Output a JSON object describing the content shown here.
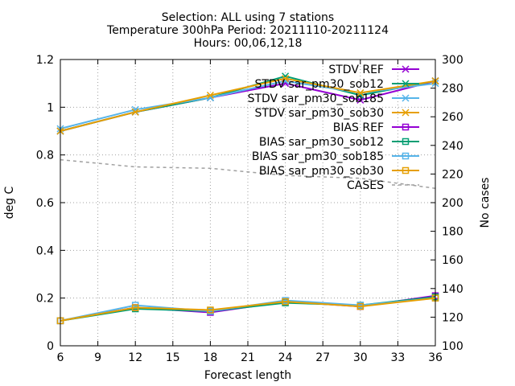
{
  "chart_data": {
    "type": "line",
    "title_lines": [
      "Selection: ALL using     7 stations",
      "Temperature 300hPa   Period: 20211110-20211124",
      "Hours: 00,06,12,18"
    ],
    "xlabel": "Forecast length",
    "ylabel": "deg C",
    "y2label": "No cases",
    "x": [
      6,
      12,
      18,
      24,
      30,
      36
    ],
    "xticks": [
      6,
      9,
      12,
      15,
      18,
      21,
      24,
      27,
      30,
      33,
      36
    ],
    "xlim": [
      6,
      36
    ],
    "yticks": [
      0,
      0.2,
      0.4,
      0.6,
      0.8,
      1,
      1.2
    ],
    "ylim": [
      0,
      1.2
    ],
    "y2ticks": [
      100,
      120,
      140,
      160,
      180,
      200,
      220,
      240,
      260,
      280,
      300
    ],
    "y2lim": [
      100,
      300
    ],
    "grid": true,
    "legend_position": "top-right",
    "series": [
      {
        "name": "STDV REF",
        "axis": "y",
        "values": [
          0.9,
          0.98,
          1.04,
          1.1,
          1.03,
          1.11
        ],
        "color": "#9400d3",
        "marker": "x",
        "dash": "solid"
      },
      {
        "name": "STDV sar_pm30_sob12",
        "axis": "y",
        "values": [
          0.9,
          0.98,
          1.04,
          1.13,
          1.05,
          1.11
        ],
        "color": "#009e73",
        "marker": "x",
        "dash": "solid"
      },
      {
        "name": "STDV sar_pm30_sob185",
        "axis": "y",
        "values": [
          0.91,
          0.99,
          1.04,
          1.11,
          1.06,
          1.1
        ],
        "color": "#56b4e9",
        "marker": "x",
        "dash": "solid"
      },
      {
        "name": "STDV sar_pm30_sob30",
        "axis": "y",
        "values": [
          0.9,
          0.98,
          1.05,
          1.12,
          1.06,
          1.11
        ],
        "color": "#e69f00",
        "marker": "x",
        "dash": "solid"
      },
      {
        "name": "BIAS REF",
        "axis": "y",
        "values": [
          0.105,
          0.16,
          0.14,
          0.185,
          0.165,
          0.21
        ],
        "color": "#9400d3",
        "marker": "square",
        "dash": "solid"
      },
      {
        "name": "BIAS sar_pm30_sob12",
        "axis": "y",
        "values": [
          0.105,
          0.155,
          0.145,
          0.18,
          0.17,
          0.205
        ],
        "color": "#009e73",
        "marker": "square",
        "dash": "solid"
      },
      {
        "name": "BIAS sar_pm30_sob185",
        "axis": "y",
        "values": [
          0.105,
          0.17,
          0.145,
          0.19,
          0.17,
          0.2
        ],
        "color": "#56b4e9",
        "marker": "square",
        "dash": "solid"
      },
      {
        "name": "BIAS sar_pm30_sob30",
        "axis": "y",
        "values": [
          0.105,
          0.16,
          0.15,
          0.185,
          0.165,
          0.2
        ],
        "color": "#e69f00",
        "marker": "square",
        "dash": "solid"
      },
      {
        "name": "CASES",
        "axis": "y2",
        "values": [
          230,
          225,
          224,
          219,
          217,
          210
        ],
        "color": "#a0a0a0",
        "marker": "none",
        "dash": "dashed"
      }
    ]
  }
}
